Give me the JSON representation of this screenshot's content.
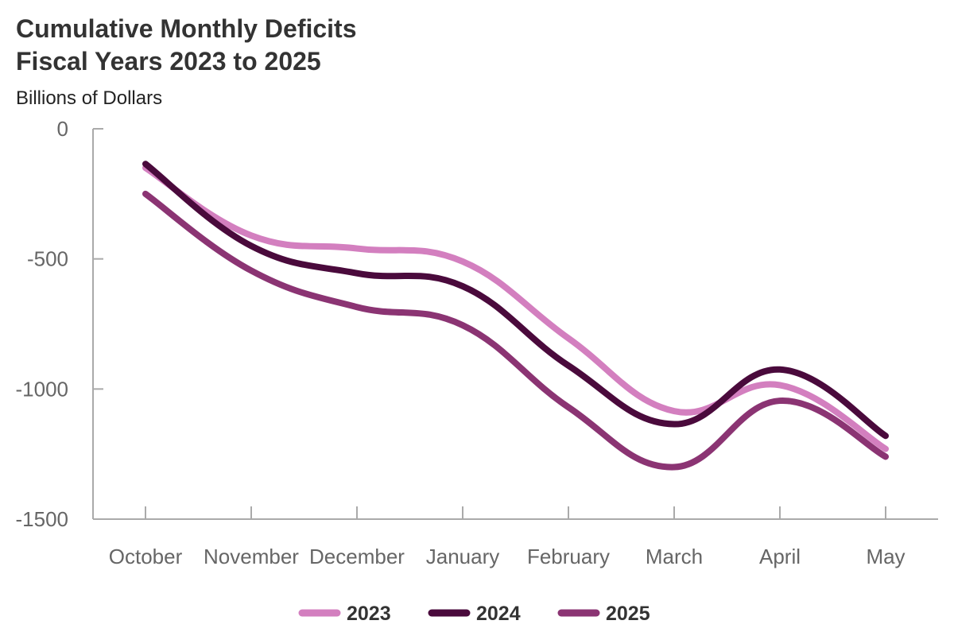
{
  "title_line1": "Cumulative Monthly Deficits",
  "title_line2": "Fiscal Years 2023 to 2025",
  "unit_label": "Billions of Dollars",
  "chart_data": {
    "type": "line",
    "title": "Cumulative Monthly Deficits Fiscal Years 2023 to 2025",
    "ylabel": "Billions of Dollars",
    "xlabel": "",
    "categories": [
      "October",
      "November",
      "December",
      "January",
      "February",
      "March",
      "April",
      "May"
    ],
    "ylim": [
      -1500,
      0
    ],
    "yticks": [
      0,
      -500,
      -1000,
      -1500
    ],
    "ytick_labels": [
      "0",
      "-500",
      "-1000",
      "-1500"
    ],
    "grid": false,
    "legend_position": "bottom",
    "series": [
      {
        "name": "2023",
        "color": "#d37fbf",
        "values": [
          -150,
          -410,
          -460,
          -510,
          -805,
          -1085,
          -985,
          -1230
        ]
      },
      {
        "name": "2024",
        "color": "#4a0a3c",
        "values": [
          -135,
          -450,
          -555,
          -605,
          -910,
          -1135,
          -925,
          -1180
        ]
      },
      {
        "name": "2025",
        "color": "#8b3473",
        "values": [
          -250,
          -545,
          -685,
          -755,
          -1070,
          -1300,
          -1045,
          -1260
        ]
      }
    ]
  }
}
